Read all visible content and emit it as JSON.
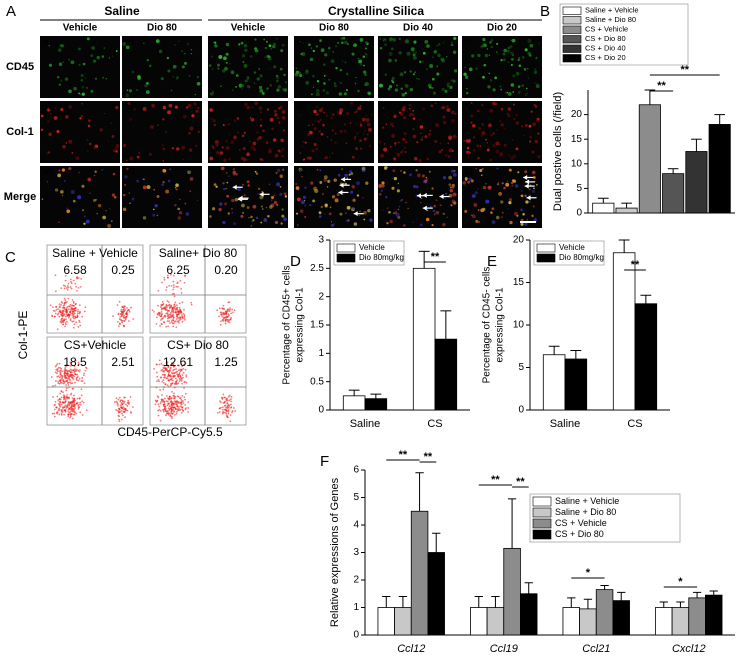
{
  "figure": {
    "panel_labels": [
      "A",
      "B",
      "C",
      "D",
      "E",
      "F"
    ]
  },
  "microscopy": {
    "groups": [
      "Saline",
      "Crystalline Silica"
    ],
    "columns": [
      "Vehicle",
      "Dio 80",
      "Vehicle",
      "Dio 80",
      "Dio 40",
      "Dio 20"
    ],
    "rows": [
      "CD45",
      "Col-1",
      "Merge"
    ],
    "cells": [
      [
        "a1",
        "b1",
        "c1",
        "d1",
        "e1",
        "f1"
      ],
      [
        "a2",
        "b2",
        "c2",
        "d2",
        "e2",
        "f2"
      ],
      [
        "a3",
        "b3",
        "c3",
        "d3",
        "e3",
        "f3"
      ]
    ]
  },
  "flow": {
    "y_label": "Col-1-PE",
    "x_label": "CD45-PerCP-Cy5.5",
    "plots": [
      {
        "label": "Saline + Vehicle",
        "values": [
          "6.58",
          "0.25"
        ]
      },
      {
        "label": "Saline+ Dio 80",
        "values": [
          "6.25",
          "0.20"
        ]
      },
      {
        "label": "CS+Vehicle",
        "values": [
          "18.5",
          "2.51"
        ]
      },
      {
        "label": "CS+ Dio 80",
        "values": [
          "12.61",
          "1.25"
        ]
      }
    ]
  },
  "chart_data": [
    {
      "type": "bar",
      "y_label": "Dual postive cells (/field)",
      "categories": [
        null
      ],
      "series": [
        {
          "name": "Saline + Vehicle",
          "color": "#ffffff",
          "values": [
            2
          ],
          "errors": [
            1
          ]
        },
        {
          "name": "Saline + Dio 80",
          "color": "#c8c8c8",
          "values": [
            1
          ],
          "errors": [
            1
          ]
        },
        {
          "name": "CS + Vehicle",
          "color": "#8c8c8c",
          "values": [
            22
          ],
          "errors": [
            3
          ]
        },
        {
          "name": "CS + Dio 80",
          "color": "#555555",
          "values": [
            8
          ],
          "errors": [
            1
          ]
        },
        {
          "name": "CS + Dio 40",
          "color": "#333333",
          "values": [
            12.5
          ],
          "errors": [
            2.5
          ]
        },
        {
          "name": "CS + Dio 20",
          "color": "#000000",
          "values": [
            18
          ],
          "errors": [
            2
          ]
        }
      ],
      "ylim": [
        0,
        25
      ],
      "yticks": [
        0,
        5,
        10,
        15,
        20
      ],
      "legend": "top",
      "annotations": [
        "**",
        "**"
      ]
    },
    {
      "type": "bar",
      "y_label": [
        "Percentage of CD45+ cells",
        "expressing Col-1"
      ],
      "categories": [
        "Saline",
        "CS"
      ],
      "series": [
        {
          "name": "Vehicle",
          "color": "#ffffff",
          "values": [
            0.25,
            2.5
          ],
          "errors": [
            0.1,
            0.3
          ]
        },
        {
          "name": "Dio 80mg/kg",
          "color": "#000000",
          "values": [
            0.2,
            1.25
          ],
          "errors": [
            0.08,
            0.5
          ]
        }
      ],
      "ylim": [
        0,
        3
      ],
      "yticks": [
        0,
        0.5,
        1,
        1.5,
        2,
        2.5,
        3
      ],
      "legend": "upper left",
      "annotations": [
        "**"
      ]
    },
    {
      "type": "bar",
      "y_label": [
        "Percentage of CD45- cells",
        "expressing Col-1"
      ],
      "categories": [
        "Saline",
        "CS"
      ],
      "series": [
        {
          "name": "Vehicle",
          "color": "#ffffff",
          "values": [
            6.5,
            18.5
          ],
          "errors": [
            1,
            1.5
          ]
        },
        {
          "name": "Dio 80mg/kg",
          "color": "#000000",
          "values": [
            6,
            12.5
          ],
          "errors": [
            1,
            1
          ]
        }
      ],
      "ylim": [
        0,
        20
      ],
      "yticks": [
        0,
        5,
        10,
        15,
        20
      ],
      "legend": "upper left",
      "annotations": [
        "**"
      ]
    },
    {
      "type": "bar",
      "y_label": "Relative expressions of Genes",
      "categories": [
        "Ccl12",
        "Ccl19",
        "Ccl21",
        "Cxcl12"
      ],
      "series": [
        {
          "name": "Saline + Vehicle",
          "color": "#ffffff",
          "values": [
            1,
            1,
            1,
            1
          ],
          "errors": [
            0.4,
            0.4,
            0.35,
            0.2
          ]
        },
        {
          "name": "Saline + Dio 80",
          "color": "#c8c8c8",
          "values": [
            1,
            1,
            0.95,
            1
          ],
          "errors": [
            0.4,
            0.4,
            0.35,
            0.2
          ]
        },
        {
          "name": "CS + Vehicle",
          "color": "#8c8c8c",
          "values": [
            4.5,
            3.15,
            1.65,
            1.35
          ],
          "errors": [
            1.4,
            1.8,
            0.15,
            0.2
          ]
        },
        {
          "name": "CS + Dio 80",
          "color": "#000000",
          "values": [
            3,
            1.5,
            1.25,
            1.45
          ],
          "errors": [
            0.7,
            0.4,
            0.3,
            0.15
          ]
        }
      ],
      "ylim": [
        0,
        6
      ],
      "yticks": [
        0,
        1,
        2,
        3,
        4,
        5,
        6
      ],
      "legend": "right",
      "annotations": [
        "**",
        "**",
        "**",
        "**",
        "*",
        "*"
      ]
    }
  ]
}
